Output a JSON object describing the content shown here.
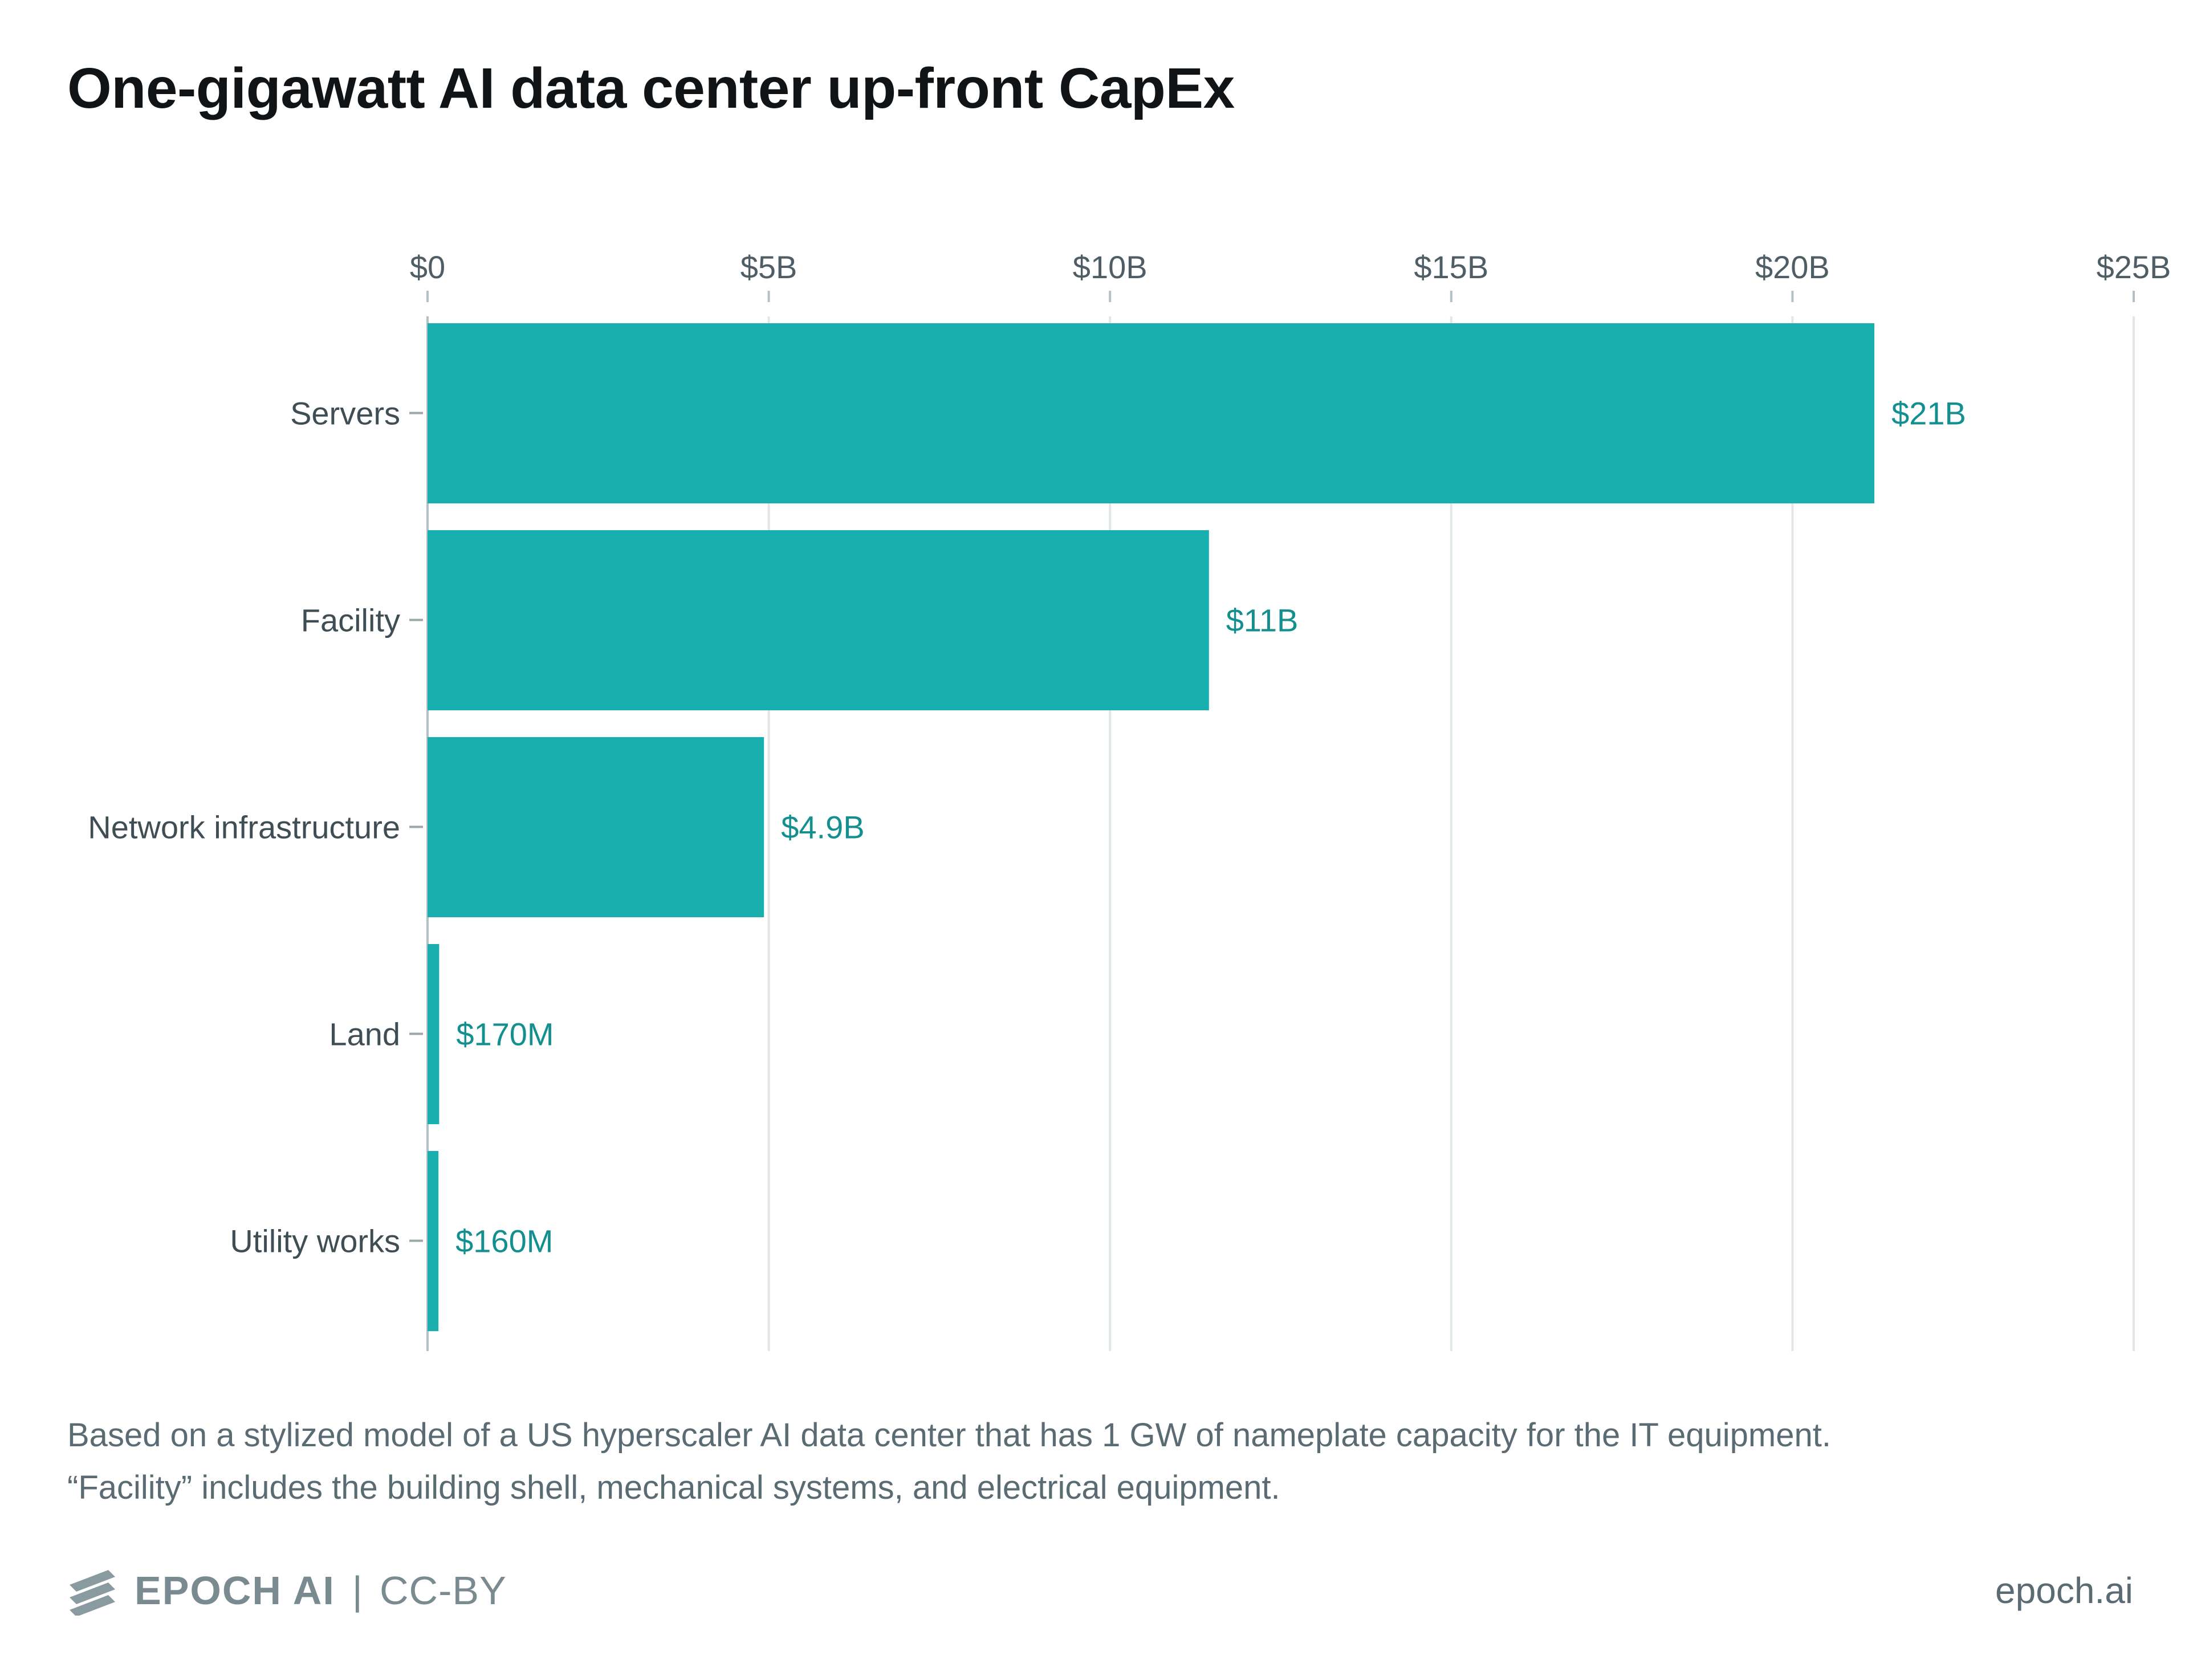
{
  "title": "One-gigawatt AI data center up-front CapEx",
  "chart_data": {
    "type": "bar",
    "orientation": "horizontal",
    "categories": [
      "Servers",
      "Facility",
      "Network infrastructure",
      "Land",
      "Utility works"
    ],
    "values": [
      21200000000,
      11450000000,
      4930000000,
      170000000,
      160000000
    ],
    "data_labels": [
      "$21B",
      "$11B",
      "$4.9B",
      "$170M",
      "$160M"
    ],
    "x_ticks": [
      0,
      5000000000,
      10000000000,
      15000000000,
      20000000000,
      25000000000
    ],
    "x_tick_labels": [
      "$0",
      "$5B",
      "$10B",
      "$15B",
      "$20B",
      "$25B"
    ],
    "xlim": [
      0,
      25000000000
    ],
    "x_axis_position": "top",
    "grid": true,
    "legend": "none",
    "bar_color": "#1aafaf",
    "label_color": "#138f8f"
  },
  "notes": [
    "Based on a stylized model of a US hyperscaler AI data center that has 1 GW of nameplate capacity for the IT equipment.",
    "“Facility” includes the building shell, mechanical systems, and electrical equipment."
  ],
  "footer": {
    "brand": "EPOCH AI",
    "separator": "|",
    "license": "CC-BY",
    "site": "epoch.ai",
    "logo_icon": "epoch-stripes-icon"
  }
}
